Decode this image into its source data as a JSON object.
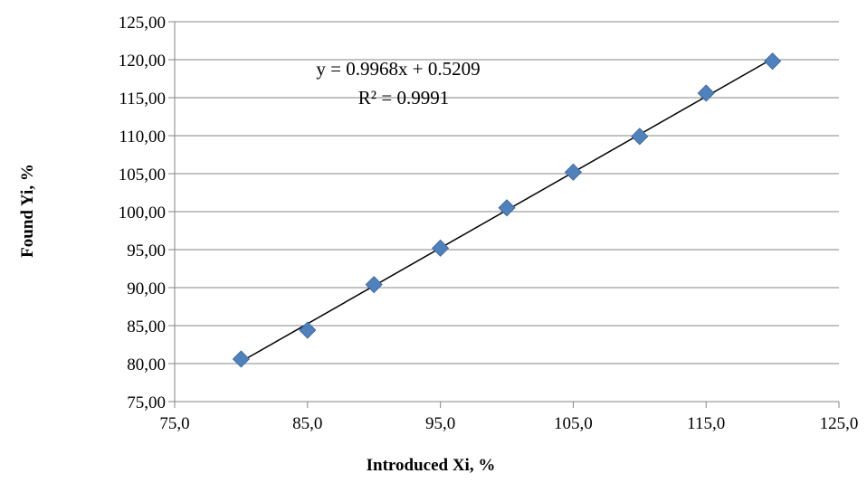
{
  "chart_data": {
    "type": "scatter",
    "title": "",
    "xlabel": "Introduced Xi, %",
    "ylabel": "Found Yi, %",
    "xlim": [
      75,
      125
    ],
    "ylim": [
      75,
      125
    ],
    "x_ticks": [
      "75,0",
      "85,0",
      "95,0",
      "105,0",
      "115,0",
      "125,0"
    ],
    "y_ticks": [
      "75,00",
      "80,00",
      "85,00",
      "90,00",
      "95,00",
      "100,00",
      "105,00",
      "110,00",
      "115,00",
      "120,00",
      "125,00"
    ],
    "grid": "horizontal",
    "legend": "none",
    "marker": "diamond",
    "marker_color": "#4F81BD",
    "trendline_color": "#000000",
    "series": [
      {
        "points": [
          {
            "x": 80,
            "y": 80.6
          },
          {
            "x": 85,
            "y": 84.4
          },
          {
            "x": 90,
            "y": 90.4
          },
          {
            "x": 95,
            "y": 95.2
          },
          {
            "x": 100,
            "y": 100.5
          },
          {
            "x": 105,
            "y": 105.2
          },
          {
            "x": 110,
            "y": 109.9
          },
          {
            "x": 115,
            "y": 115.6
          },
          {
            "x": 120,
            "y": 119.8
          }
        ]
      }
    ],
    "trendline": {
      "slope": 0.9968,
      "intercept": 0.5209,
      "equation_text": "y = 0.9968x + 0.5209",
      "r2_text": "R² = 0.9991"
    }
  }
}
